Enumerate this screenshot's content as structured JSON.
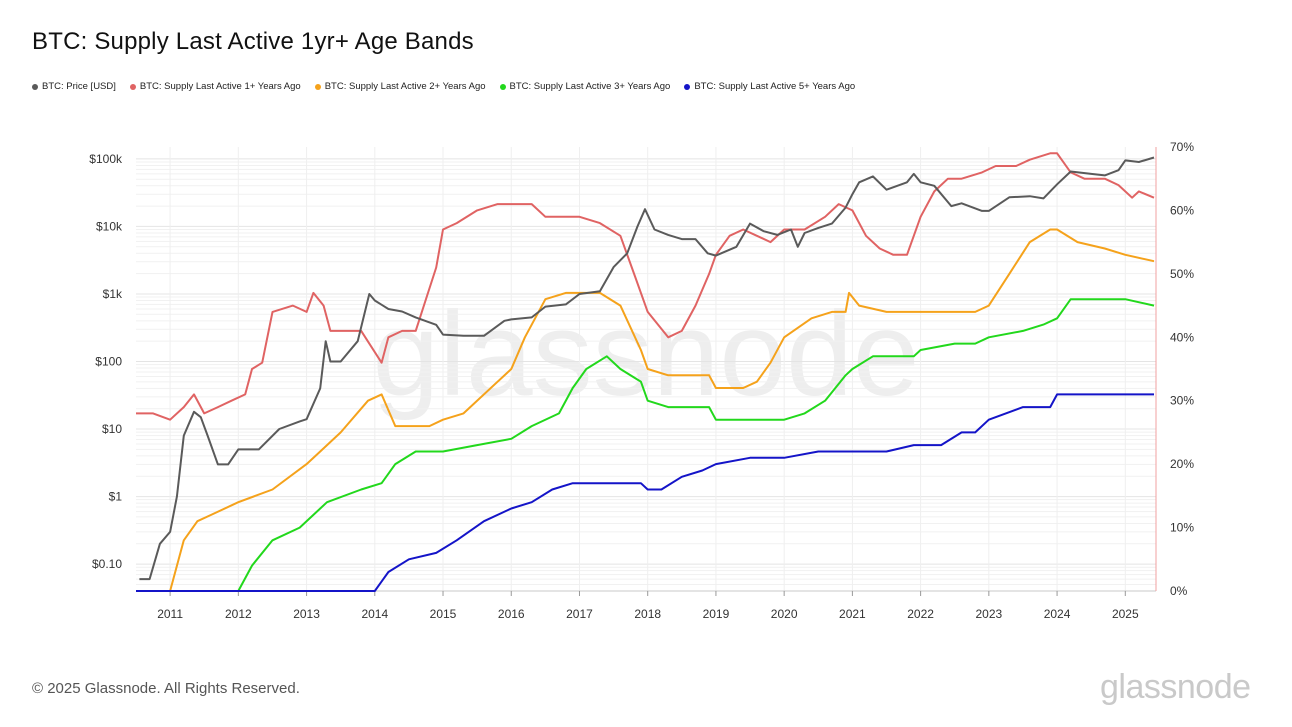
{
  "title": "BTC: Supply Last Active 1yr+ Age Bands",
  "footer": "© 2025 Glassnode. All Rights Reserved.",
  "brand": "glassnode",
  "watermark": "glassnode",
  "legend": [
    {
      "label": "BTC: Price [USD]",
      "color": "#5a5a5a"
    },
    {
      "label": "BTC: Supply Last Active 1+ Years Ago",
      "color": "#e06363"
    },
    {
      "label": "BTC: Supply Last Active 2+ Years Ago",
      "color": "#f5a21b"
    },
    {
      "label": "BTC: Supply Last Active 3+ Years Ago",
      "color": "#22d81c"
    },
    {
      "label": "BTC: Supply Last Active 5+ Years Ago",
      "color": "#1414c8"
    }
  ],
  "chart_data": {
    "type": "line",
    "title": "BTC: Supply Last Active 1yr+ Age Bands",
    "x_range": [
      2010.5,
      2025.45
    ],
    "x_ticks": [
      "2011",
      "2012",
      "2013",
      "2014",
      "2015",
      "2016",
      "2017",
      "2018",
      "2019",
      "2020",
      "2021",
      "2022",
      "2023",
      "2024",
      "2025"
    ],
    "y_left": {
      "scale": "log",
      "range": [
        0.04,
        150000
      ],
      "ticks": [
        "$0.10",
        "$1",
        "$10",
        "$100",
        "$1k",
        "$10k",
        "$100k"
      ],
      "tick_values": [
        0.1,
        1,
        10,
        100,
        1000,
        10000,
        100000
      ]
    },
    "y_right": {
      "scale": "linear",
      "range": [
        0,
        70
      ],
      "ticks": [
        "0%",
        "10%",
        "20%",
        "30%",
        "40%",
        "50%",
        "60%",
        "70%"
      ],
      "tick_values": [
        0,
        10,
        20,
        30,
        40,
        50,
        60,
        70
      ]
    },
    "grid": true,
    "series": [
      {
        "name": "BTC: Price [USD]",
        "color": "#5a5a5a",
        "axis": "left",
        "x": [
          2010.55,
          2010.7,
          2010.85,
          2011.0,
          2011.1,
          2011.2,
          2011.35,
          2011.45,
          2011.55,
          2011.7,
          2011.85,
          2012.0,
          2012.3,
          2012.6,
          2012.9,
          2013.0,
          2013.2,
          2013.28,
          2013.35,
          2013.5,
          2013.75,
          2013.92,
          2014.0,
          2014.2,
          2014.4,
          2014.6,
          2014.9,
          2015.0,
          2015.3,
          2015.6,
          2015.9,
          2016.0,
          2016.3,
          2016.5,
          2016.8,
          2017.0,
          2017.3,
          2017.5,
          2017.7,
          2017.85,
          2017.96,
          2018.1,
          2018.3,
          2018.5,
          2018.7,
          2018.88,
          2019.0,
          2019.3,
          2019.5,
          2019.7,
          2019.9,
          2020.1,
          2020.2,
          2020.3,
          2020.5,
          2020.7,
          2020.9,
          2021.0,
          2021.1,
          2021.3,
          2021.5,
          2021.8,
          2021.9,
          2022.0,
          2022.2,
          2022.45,
          2022.6,
          2022.9,
          2023.0,
          2023.3,
          2023.6,
          2023.8,
          2024.0,
          2024.2,
          2024.5,
          2024.7,
          2024.9,
          2025.0,
          2025.2,
          2025.42
        ],
        "values": [
          0.06,
          0.06,
          0.2,
          0.3,
          1.0,
          8,
          18,
          15,
          8,
          3,
          3,
          5,
          5,
          10,
          13,
          14,
          40,
          200,
          100,
          100,
          200,
          1000,
          800,
          600,
          550,
          450,
          350,
          250,
          240,
          240,
          400,
          420,
          450,
          650,
          700,
          1000,
          1100,
          2500,
          4000,
          10000,
          18000,
          9000,
          7500,
          6500,
          6500,
          4000,
          3700,
          5000,
          11000,
          8500,
          7500,
          9000,
          5000,
          8000,
          9500,
          11000,
          19000,
          30000,
          45000,
          55000,
          35000,
          45000,
          60000,
          45000,
          40000,
          20000,
          22000,
          17000,
          17000,
          27000,
          28000,
          26000,
          42000,
          65000,
          60000,
          57000,
          68000,
          95000,
          90000,
          105000
        ]
      },
      {
        "name": "BTC: Supply Last Active 1+ Years Ago",
        "color": "#e06363",
        "axis": "right",
        "x": [
          2010.5,
          2010.75,
          2011.0,
          2011.2,
          2011.35,
          2011.5,
          2011.7,
          2011.9,
          2012.1,
          2012.2,
          2012.35,
          2012.5,
          2012.8,
          2013.0,
          2013.1,
          2013.25,
          2013.35,
          2013.5,
          2013.8,
          2013.92,
          2014.1,
          2014.2,
          2014.4,
          2014.6,
          2014.9,
          2015.0,
          2015.2,
          2015.5,
          2015.8,
          2016.0,
          2016.3,
          2016.5,
          2016.8,
          2017.0,
          2017.3,
          2017.6,
          2017.8,
          2018.0,
          2018.3,
          2018.5,
          2018.7,
          2018.9,
          2019.0,
          2019.2,
          2019.4,
          2019.6,
          2019.8,
          2020.0,
          2020.3,
          2020.6,
          2020.8,
          2021.0,
          2021.2,
          2021.4,
          2021.6,
          2021.8,
          2022.0,
          2022.2,
          2022.4,
          2022.6,
          2022.9,
          2023.1,
          2023.4,
          2023.6,
          2023.9,
          2024.0,
          2024.2,
          2024.4,
          2024.7,
          2024.9,
          2025.1,
          2025.2,
          2025.42
        ],
        "values": [
          28,
          28,
          27,
          29,
          31,
          28,
          29,
          30,
          31,
          35,
          36,
          44,
          45,
          44,
          47,
          45,
          41,
          41,
          41,
          39,
          36,
          40,
          41,
          41,
          51,
          57,
          58,
          60,
          61,
          61,
          61,
          59,
          59,
          59,
          58,
          56,
          50,
          44,
          40,
          41,
          45,
          50,
          53,
          56,
          57,
          56,
          55,
          57,
          57,
          59,
          61,
          60,
          56,
          54,
          53,
          53,
          59,
          63,
          65,
          65,
          66,
          67,
          67,
          68,
          69,
          69,
          66,
          65,
          65,
          64,
          62,
          63,
          62
        ]
      },
      {
        "name": "BTC: Supply Last Active 2+ Years Ago",
        "color": "#f5a21b",
        "axis": "right",
        "x": [
          2010.5,
          2011.0,
          2011.2,
          2011.4,
          2011.6,
          2012.0,
          2012.5,
          2013.0,
          2013.2,
          2013.5,
          2013.9,
          2014.1,
          2014.3,
          2014.8,
          2015.0,
          2015.3,
          2015.8,
          2016.0,
          2016.2,
          2016.5,
          2016.8,
          2017.0,
          2017.3,
          2017.6,
          2017.9,
          2018.0,
          2018.3,
          2018.6,
          2018.9,
          2019.0,
          2019.2,
          2019.4,
          2019.6,
          2019.8,
          2020.0,
          2020.4,
          2020.7,
          2020.9,
          2020.95,
          2021.1,
          2021.5,
          2021.8,
          2022.0,
          2022.4,
          2022.8,
          2023.0,
          2023.3,
          2023.6,
          2023.9,
          2024.0,
          2024.3,
          2024.7,
          2025.0,
          2025.42
        ],
        "values": [
          0,
          0,
          8,
          11,
          12,
          14,
          16,
          20,
          22,
          25,
          30,
          31,
          26,
          26,
          27,
          28,
          33,
          35,
          40,
          46,
          47,
          47,
          47,
          45,
          38,
          35,
          34,
          34,
          34,
          32,
          32,
          32,
          33,
          36,
          40,
          43,
          44,
          44,
          47,
          45,
          44,
          44,
          44,
          44,
          44,
          45,
          50,
          55,
          57,
          57,
          55,
          54,
          53,
          52
        ]
      },
      {
        "name": "BTC: Supply Last Active 3+ Years Ago",
        "color": "#22d81c",
        "axis": "right",
        "x": [
          2010.5,
          2011.0,
          2012.0,
          2012.2,
          2012.5,
          2012.9,
          2013.3,
          2013.8,
          2014.1,
          2014.3,
          2014.6,
          2015.0,
          2015.5,
          2016.0,
          2016.3,
          2016.7,
          2016.9,
          2017.1,
          2017.4,
          2017.6,
          2017.9,
          2018.0,
          2018.3,
          2018.6,
          2018.9,
          2019.0,
          2019.5,
          2020.0,
          2020.3,
          2020.6,
          2020.9,
          2021.0,
          2021.3,
          2021.6,
          2021.9,
          2022.0,
          2022.5,
          2022.8,
          2023.0,
          2023.5,
          2023.8,
          2024.0,
          2024.2,
          2024.6,
          2025.0,
          2025.42
        ],
        "values": [
          0,
          0,
          0,
          4,
          8,
          10,
          14,
          16,
          17,
          20,
          22,
          22,
          23,
          24,
          26,
          28,
          32,
          35,
          37,
          35,
          33,
          30,
          29,
          29,
          29,
          27,
          27,
          27,
          28,
          30,
          34,
          35,
          37,
          37,
          37,
          38,
          39,
          39,
          40,
          41,
          42,
          43,
          46,
          46,
          46,
          45
        ]
      },
      {
        "name": "BTC: Supply Last Active 5+ Years Ago",
        "color": "#1414c8",
        "axis": "right",
        "x": [
          2010.5,
          2011.0,
          2012.0,
          2013.0,
          2014.0,
          2014.2,
          2014.5,
          2014.9,
          2015.2,
          2015.6,
          2016.0,
          2016.3,
          2016.6,
          2016.9,
          2017.0,
          2017.5,
          2017.9,
          2018.0,
          2018.2,
          2018.5,
          2018.8,
          2019.0,
          2019.5,
          2020.0,
          2020.5,
          2021.0,
          2021.5,
          2021.9,
          2022.0,
          2022.3,
          2022.6,
          2022.8,
          2023.0,
          2023.5,
          2023.9,
          2024.0,
          2024.3,
          2024.7,
          2025.0,
          2025.42
        ],
        "values": [
          0,
          0,
          0,
          0,
          0,
          3,
          5,
          6,
          8,
          11,
          13,
          14,
          16,
          17,
          17,
          17,
          17,
          16,
          16,
          18,
          19,
          20,
          21,
          21,
          22,
          22,
          22,
          23,
          23,
          23,
          25,
          25,
          27,
          29,
          29,
          31,
          31,
          31,
          31,
          31
        ]
      }
    ]
  }
}
